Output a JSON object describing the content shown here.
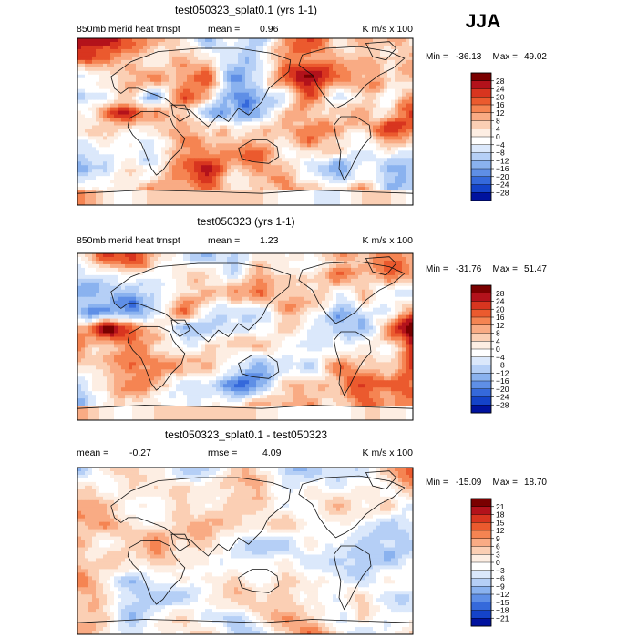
{
  "season": "JJA",
  "chart_data": [
    {
      "type": "heatmap",
      "title": "test050323_splat0.1 (yrs 1-1)",
      "variable": "850mb merid heat trnspt",
      "stat1_label": "mean =",
      "stat1_value": "0.96",
      "units": "K m/s x 100",
      "min_label": "Min =",
      "min": "-36.13",
      "max_label": "Max =",
      "max": "49.02",
      "levels": [
        28,
        24,
        20,
        16,
        12,
        8,
        4,
        0,
        -4,
        -8,
        -12,
        -16,
        -20,
        -24,
        -28
      ],
      "colors": [
        "#7a0000",
        "#b3121b",
        "#d8351f",
        "#eb5a2e",
        "#f58452",
        "#f9ab84",
        "#fbcfb4",
        "#fdeee3",
        "#ffffff",
        "#dbe8fb",
        "#b5cff6",
        "#8ab2ef",
        "#5f8fe6",
        "#3569db",
        "#1443c9",
        "#00129e"
      ],
      "field_scale": 1.0
    },
    {
      "type": "heatmap",
      "title": "test050323 (yrs 1-1)",
      "variable": "850mb merid heat trnspt",
      "stat1_label": "mean =",
      "stat1_value": "1.23",
      "units": "K m/s x 100",
      "min_label": "Min =",
      "min": "-31.76",
      "max_label": "Max =",
      "max": "51.47",
      "levels": [
        28,
        24,
        20,
        16,
        12,
        8,
        4,
        0,
        -4,
        -8,
        -12,
        -16,
        -20,
        -24,
        -28
      ],
      "colors": [
        "#7a0000",
        "#b3121b",
        "#d8351f",
        "#eb5a2e",
        "#f58452",
        "#f9ab84",
        "#fbcfb4",
        "#fdeee3",
        "#ffffff",
        "#dbe8fb",
        "#b5cff6",
        "#8ab2ef",
        "#5f8fe6",
        "#3569db",
        "#1443c9",
        "#00129e"
      ],
      "field_scale": 1.0
    },
    {
      "type": "heatmap",
      "title": "test050323_splat0.1 - test050323",
      "variable": "",
      "stat1_label": "mean =",
      "stat1_value": "-0.27",
      "stat2_label": "rmse =",
      "stat2_value": "4.09",
      "units": "K m/s x 100",
      "min_label": "Min =",
      "min": "-15.09",
      "max_label": "Max =",
      "max": "18.70",
      "levels": [
        21,
        18,
        15,
        12,
        9,
        6,
        3,
        0,
        -3,
        -6,
        -9,
        -12,
        -15,
        -18,
        -21
      ],
      "colors": [
        "#7a0000",
        "#b3121b",
        "#d8351f",
        "#eb5a2e",
        "#f58452",
        "#f9ab84",
        "#fbcfb4",
        "#fdeee3",
        "#ffffff",
        "#dbe8fb",
        "#b5cff6",
        "#8ab2ef",
        "#5f8fe6",
        "#3569db",
        "#1443c9",
        "#00129e"
      ],
      "field_scale": 0.55
    }
  ]
}
